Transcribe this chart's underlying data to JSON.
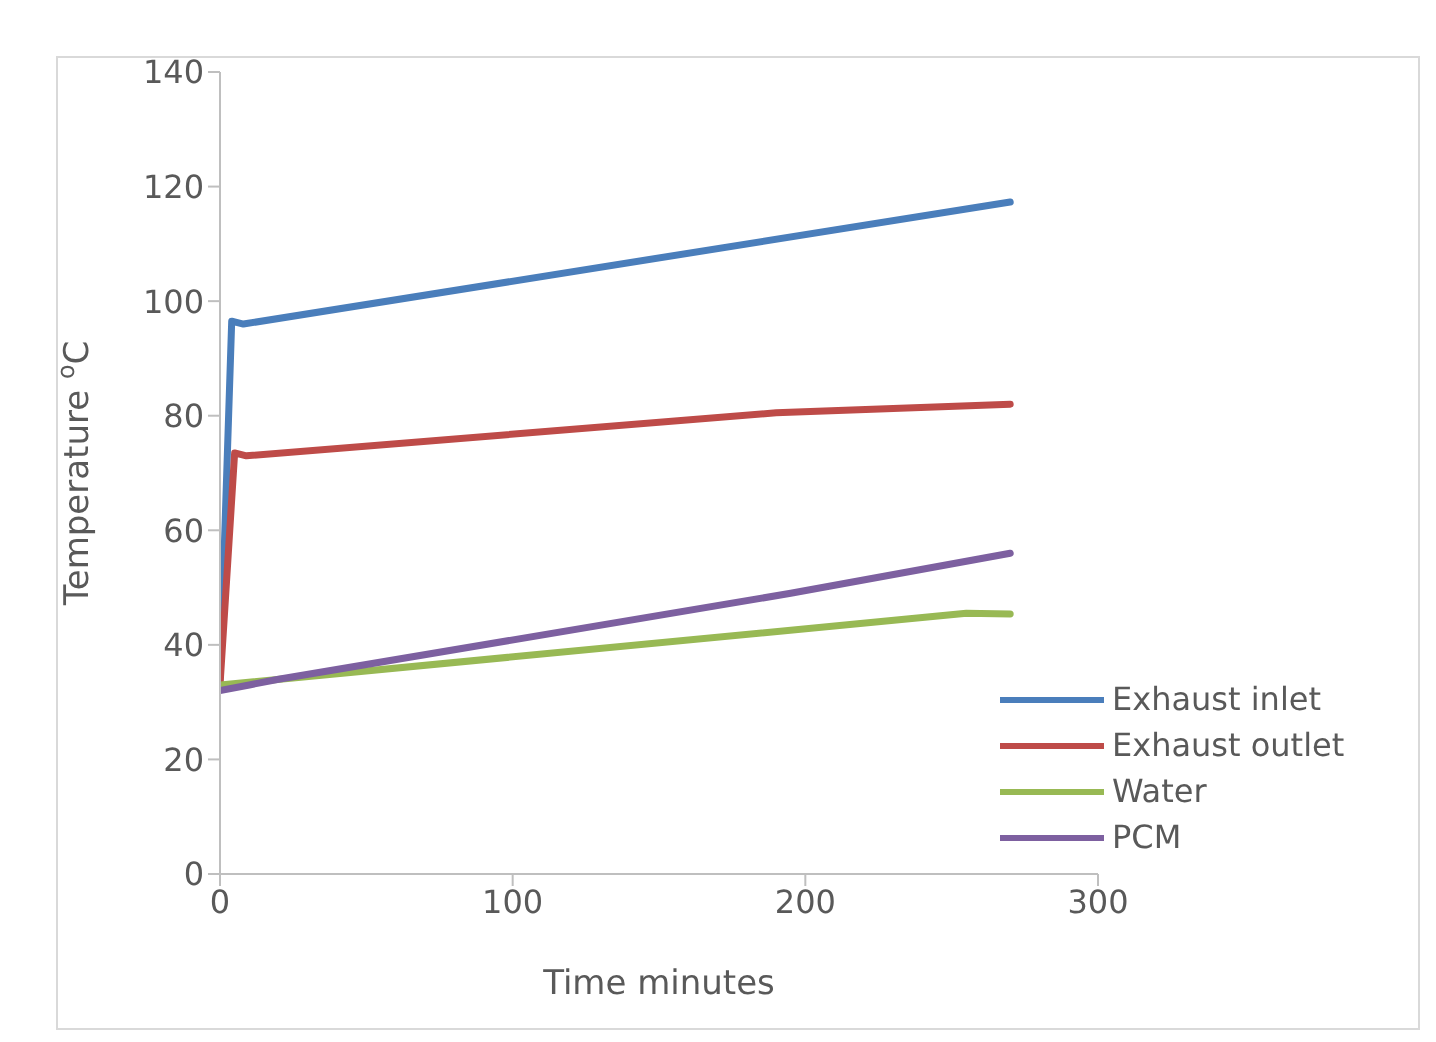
{
  "chart_data": {
    "type": "line",
    "xlabel": "Time minutes",
    "ylabel": "Temperature $^{o}$C",
    "xlim": [
      0,
      300
    ],
    "xticks": [
      0,
      100,
      200,
      300
    ],
    "ylim": [
      0,
      140
    ],
    "yticks": [
      0,
      20,
      40,
      60,
      80,
      100,
      120,
      140
    ],
    "grid": false,
    "legend": "bottom right",
    "marker": "none",
    "line_style": "solid",
    "series": [
      {
        "name": "Exhaust inlet",
        "color": "#4a7ebb",
        "x": [
          0,
          4,
          8,
          270
        ],
        "values": [
          34,
          96.5,
          96,
          117.3
        ]
      },
      {
        "name": "Exhaust outlet",
        "color": "#be4b48",
        "x": [
          0,
          5,
          9,
          190,
          270
        ],
        "values": [
          33,
          73.5,
          73,
          80.5,
          82
        ]
      },
      {
        "name": "Water",
        "color": "#98b954",
        "x": [
          0,
          255,
          270
        ],
        "values": [
          33,
          45.5,
          45.4
        ]
      },
      {
        "name": "PCM",
        "color": "#7d60a0",
        "x": [
          0,
          10,
          20,
          195,
          270
        ],
        "values": [
          32,
          33,
          34,
          49,
          56
        ]
      }
    ]
  }
}
